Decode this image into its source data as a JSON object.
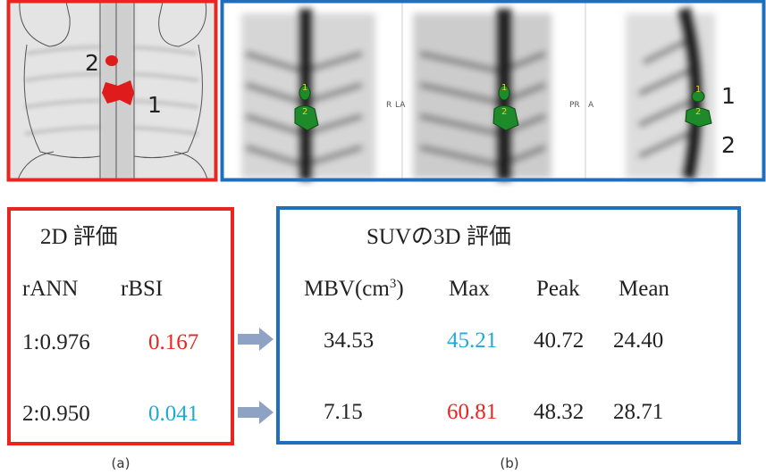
{
  "panel_a_image": {
    "labels": [
      "2",
      "1"
    ]
  },
  "panel_b_image": {
    "view_labels": [
      "R",
      "LA",
      "PR",
      "A"
    ],
    "lesion_labels": [
      "1",
      "2"
    ],
    "side_labels": [
      "1",
      "2"
    ]
  },
  "table_a": {
    "title": "2D 評価",
    "columns": [
      "rANN",
      "rBSI"
    ],
    "rows": [
      [
        "1:0.976",
        "0.167"
      ],
      [
        "2:0.950",
        "0.041"
      ]
    ]
  },
  "table_b": {
    "title": "SUVの3D 評価",
    "columns": [
      [
        "MBV(cm",
        "3",
        ")"
      ],
      "Max",
      "Peak",
      "Mean"
    ],
    "rows": [
      [
        "34.53",
        "45.21",
        "40.72",
        "24.40"
      ],
      [
        "7.15",
        "60.81",
        "48.32",
        "28.71"
      ]
    ]
  },
  "captions": [
    "(a)",
    "(b)"
  ]
}
